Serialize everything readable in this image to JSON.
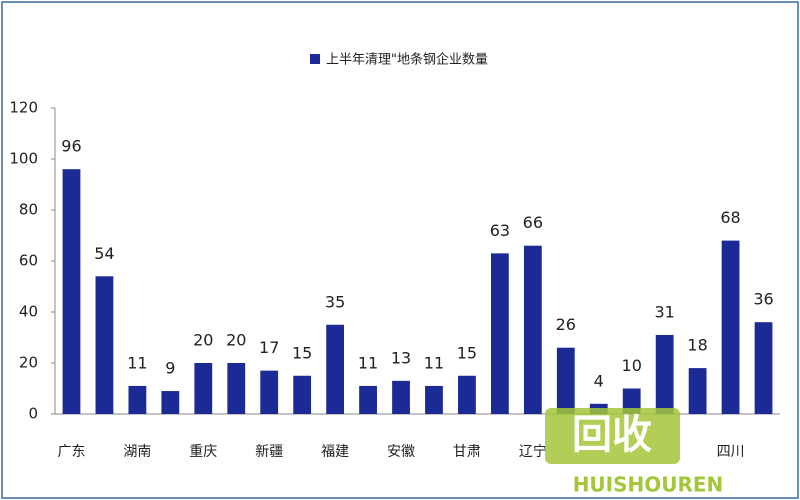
{
  "chart_data": {
    "type": "bar",
    "categories": [
      "广东",
      null,
      "湖南",
      null,
      "重庆",
      null,
      "新疆",
      null,
      "福建",
      null,
      "安徽",
      null,
      "甘肃",
      null,
      "辽宁",
      null,
      null,
      null,
      null,
      null,
      "四川",
      null
    ],
    "series": [
      {
        "name": "上半年清理\"地条钢企业数量",
        "color": "#1c2a96",
        "values": [
          96,
          54,
          11,
          9,
          20,
          20,
          17,
          15,
          35,
          11,
          13,
          11,
          15,
          63,
          66,
          26,
          4,
          10,
          31,
          18,
          68,
          36
        ]
      }
    ],
    "ylim": [
      0,
      120
    ],
    "yticks": [
      0,
      20,
      40,
      60,
      80,
      100,
      120
    ],
    "grid": false,
    "watermark": {
      "logo": "回收",
      "brand": "HUISHOUREN"
    }
  }
}
